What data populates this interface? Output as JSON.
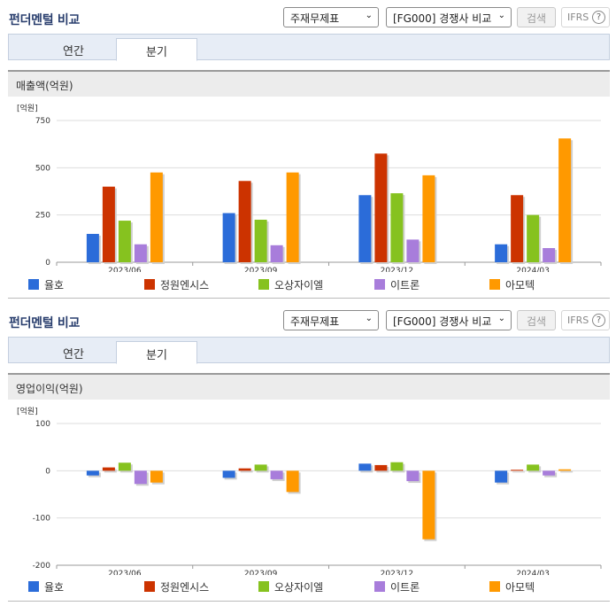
{
  "sections": [
    {
      "title": "펀더멘털 비교",
      "select_a": "주재무제표",
      "select_b": "[FG000] 경쟁사 비교",
      "search_label": "검색",
      "ifrs_label": "IFRS",
      "help_glyph": "?",
      "tab_annual": "연간",
      "tab_quarter": "분기",
      "metric_title": "매출액(억원)"
    },
    {
      "title": "펀더멘털 비교",
      "select_a": "주재무제표",
      "select_b": "[FG000] 경쟁사 비교",
      "search_label": "검색",
      "ifrs_label": "IFRS",
      "help_glyph": "?",
      "tab_annual": "연간",
      "tab_quarter": "분기",
      "metric_title": "영업이익(억원)"
    }
  ],
  "colors": {
    "series": [
      "#2b6cd9",
      "#cc3300",
      "#86c21f",
      "#a87ddb",
      "#ff9900"
    ],
    "grid": "#dddddd",
    "axis": "#999999",
    "title": "#2a3f6e"
  },
  "icons": {
    "dropdown": "chevron-down-icon",
    "help": "question-circle-icon"
  },
  "chart_data": [
    {
      "type": "bar",
      "unit_label": "[억원]",
      "categories": [
        "2023/06",
        "2023/09",
        "2023/12",
        "2024/03"
      ],
      "series": [
        {
          "name": "율호",
          "values": [
            150,
            260,
            355,
            95
          ]
        },
        {
          "name": "정원엔시스",
          "values": [
            400,
            430,
            575,
            355
          ]
        },
        {
          "name": "오상자이엘",
          "values": [
            220,
            225,
            365,
            250
          ]
        },
        {
          "name": "이트론",
          "values": [
            95,
            90,
            120,
            75
          ]
        },
        {
          "name": "아모텍",
          "values": [
            475,
            475,
            460,
            655
          ]
        }
      ],
      "yticks": [
        0,
        250,
        500,
        750
      ],
      "ylim": [
        0,
        750
      ],
      "grid": true,
      "legend": "bottom"
    },
    {
      "type": "bar",
      "unit_label": "[억원]",
      "categories": [
        "2023/06",
        "2023/09",
        "2023/12",
        "2024/03"
      ],
      "series": [
        {
          "name": "율호",
          "values": [
            -10,
            -15,
            15,
            -25
          ]
        },
        {
          "name": "정원엔시스",
          "values": [
            7,
            5,
            12,
            2
          ]
        },
        {
          "name": "오상자이엘",
          "values": [
            17,
            13,
            18,
            13
          ]
        },
        {
          "name": "이트론",
          "values": [
            -28,
            -18,
            -22,
            -10
          ]
        },
        {
          "name": "아모텍",
          "values": [
            -25,
            -45,
            -145,
            3
          ]
        }
      ],
      "yticks": [
        -200,
        -100,
        0,
        100
      ],
      "ylim": [
        -200,
        100
      ],
      "grid": true,
      "legend": "bottom"
    }
  ]
}
